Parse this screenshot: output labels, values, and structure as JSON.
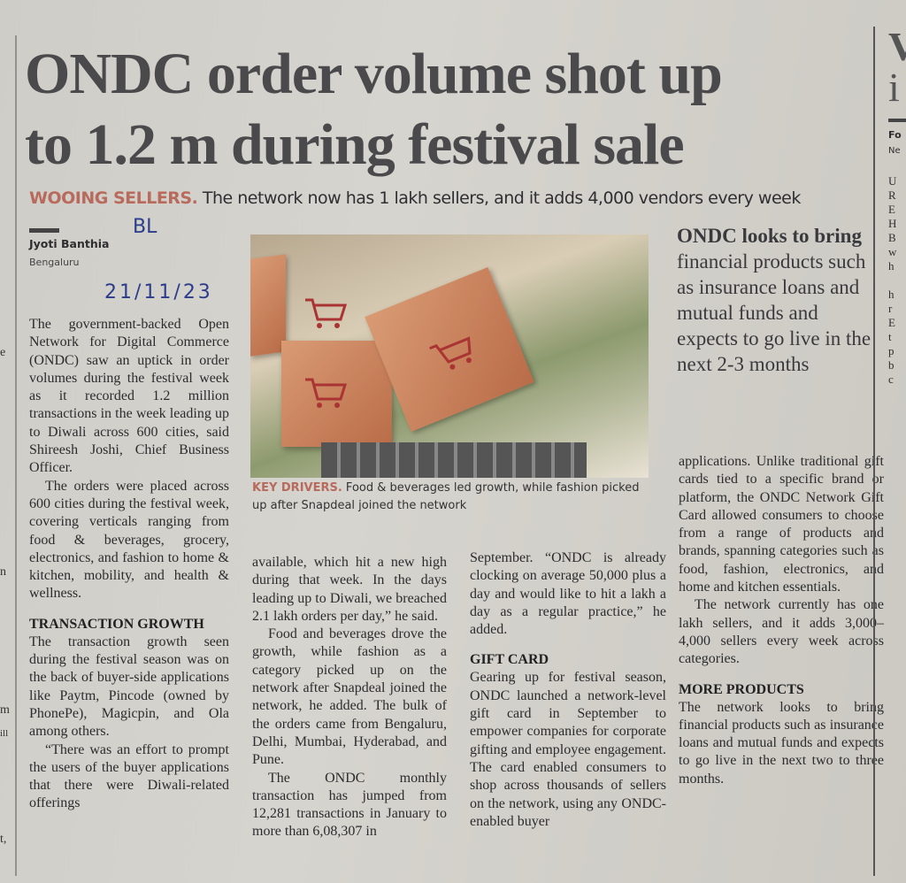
{
  "headline": {
    "line1": "ONDC order volume shot up",
    "line2": "to 1.2 m during festival sale"
  },
  "deck": {
    "kicker": "WOOING SELLERS.",
    "text": " The network now has 1 lakh sellers, and it adds 4,000 vendors every week"
  },
  "byline": {
    "author": "Jyoti Banthia",
    "place": "Bengaluru"
  },
  "handwriting": {
    "tag": "BL",
    "date": "21/11/23"
  },
  "caption": {
    "kicker": "KEY DRIVERS.",
    "text": " Food & beverages led growth, while fashion picked up after Snapdeal joined the network"
  },
  "pull_quote": {
    "bold": "ONDC looks to bring",
    "text": " financial products such as insurance loans and mutual funds and expects to go live in the next 2-3 months"
  },
  "col1": {
    "p1": "The government-backed Open Network for Digital Commerce (ONDC) saw an uptick in order volumes during the festival week as it recorded 1.2 million transactions in the week leading up to Diwali across 600 cities, said Shireesh Joshi, Chief Business Officer.",
    "p2": "The orders were placed across 600 cities during the festival week, covering verticals ranging from food & beverages, grocery, electronics, and fashion to home & kitchen, mobility, and health & wellness.",
    "h1": "TRANSACTION GROWTH",
    "p3": "The transaction growth seen during the festival season was on the back of buyer-side applications like Paytm, Pincode (owned by PhonePe), Magicpin, and Ola among others.",
    "p4": "“There was an effort to prompt the users of the buyer applications that there were Diwali-related offerings"
  },
  "col2": {
    "p1": "available, which hit a new high during that week. In the days leading up to Diwali, we breached 2.1 lakh orders per day,” he said.",
    "p2": "Food and beverages drove the growth, while fashion as a category picked up on the network after Snapdeal joined the network, he added. The bulk of the orders came from Bengaluru, Delhi, Mumbai, Hyderabad, and Pune.",
    "p3": "The ONDC monthly transaction has jumped from 12,281 transactions in January to more than 6,08,307 in"
  },
  "col3": {
    "p1": "September. “ONDC is already clocking on average 50,000 plus a day and would like to hit a lakh a day as a regular practice,” he added.",
    "h1": "GIFT CARD",
    "p2": "Gearing up for festival season, ONDC launched a network-level gift card in September to empower companies for corporate gifting and employee engagement. The card enabled consumers to shop across thousands of sellers on the network, using any ONDC-enabled buyer"
  },
  "col4": {
    "p1": "applications. Unlike traditional gift cards tied to a specific brand or platform, the ONDC Network Gift Card allowed consumers to choose from a range of products and brands, spanning categories such as food, fashion, electronics, and home and kitchen essentials.",
    "p2": "The network currently has one lakh sellers, and it adds 3,000–4,000 sellers every week across categories.",
    "h1": "MORE PRODUCTS",
    "p3": "The network looks to bring financial products such as insurance loans and mutual funds and expects to go live in the next two to three months."
  },
  "right_edge": {
    "head1": "V",
    "head2": "i",
    "by": "Fo",
    "place": "Ne",
    "letters": [
      "U",
      "R",
      "E",
      "H",
      "B",
      "w",
      "h",
      "",
      "h",
      "r",
      "E",
      "t",
      "p",
      "b",
      "c"
    ]
  },
  "left_edge": [
    "e",
    "n",
    "m",
    "ill",
    "t,"
  ]
}
